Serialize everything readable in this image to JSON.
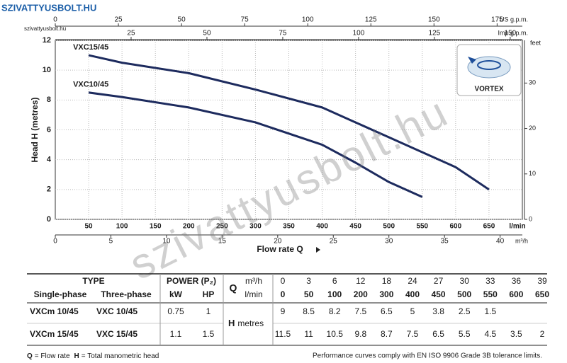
{
  "brand": {
    "name": "SZIVATTYUSBOLT.HU",
    "site": "szivattyusbolt.hu"
  },
  "watermark": "szivattyusbolt.hu",
  "badge": "VORTEX",
  "chart_data": {
    "type": "line",
    "ylabel": "Head H (metres)",
    "xlabel": "Flow rate Q",
    "x_unit": "l/min",
    "xlim": [
      0,
      700
    ],
    "xticks": [
      50,
      100,
      150,
      200,
      250,
      300,
      350,
      400,
      450,
      500,
      550,
      600,
      650
    ],
    "ylim": [
      0,
      12
    ],
    "yticks": [
      0,
      2,
      4,
      6,
      8,
      10,
      12
    ],
    "grid": true,
    "x": [
      50,
      100,
      200,
      300,
      400,
      450,
      500,
      550,
      600,
      650
    ],
    "series": [
      {
        "name": "VXC15/45",
        "color": "#1d2b5e",
        "values": [
          11,
          10.5,
          9.8,
          8.7,
          7.5,
          6.5,
          5.5,
          4.5,
          3.5,
          2
        ]
      },
      {
        "name": "VXC10/45",
        "color": "#1d2b5e",
        "values": [
          8.5,
          8.2,
          7.5,
          6.5,
          5,
          3.8,
          2.5,
          1.5,
          null,
          null
        ]
      }
    ],
    "secondary_axes": [
      {
        "position": "top",
        "unit": "US g.p.m.",
        "lim": [
          0,
          185
        ],
        "ticks": [
          0,
          25,
          50,
          75,
          100,
          125,
          150,
          175
        ]
      },
      {
        "position": "top2",
        "unit": "Imp g.p.m.",
        "lim": [
          0,
          154
        ],
        "ticks": [
          25,
          50,
          75,
          100,
          125,
          150
        ]
      },
      {
        "position": "bottom2",
        "unit": "m³/h",
        "lim": [
          0,
          42
        ],
        "ticks": [
          0,
          5,
          10,
          15,
          20,
          25,
          30,
          35,
          40
        ]
      },
      {
        "position": "right",
        "unit": "feet",
        "lim": [
          0,
          39.4
        ],
        "ticks": [
          0,
          10,
          20,
          30
        ]
      }
    ]
  },
  "table": {
    "type_header": "TYPE",
    "power_header": "POWER (P₂)",
    "q_symbol": "Q",
    "q_units": [
      "m³/h",
      "l/min"
    ],
    "flow_m3h": [
      0,
      3,
      6,
      12,
      18,
      24,
      27,
      30,
      33,
      36,
      39
    ],
    "flow_lmin": [
      0,
      50,
      100,
      200,
      300,
      400,
      450,
      500,
      550,
      600,
      650
    ],
    "columns": [
      "Single-phase",
      "Three-phase",
      "kW",
      "HP"
    ],
    "h_symbol": "H",
    "h_unit": "metres",
    "rows": [
      {
        "single_phase": "VXCm 10/45",
        "three_phase": "VXC 10/45",
        "kw": 0.75,
        "hp": 1,
        "heads": [
          9,
          8.5,
          8.2,
          7.5,
          6.5,
          5,
          3.8,
          2.5,
          1.5
        ]
      },
      {
        "single_phase": "VXCm 15/45",
        "three_phase": "VXC 15/45",
        "kw": 1.1,
        "hp": 1.5,
        "heads": [
          11.5,
          11,
          10.5,
          9.8,
          8.7,
          7.5,
          6.5,
          5.5,
          4.5,
          3.5,
          2
        ]
      }
    ]
  },
  "footer": {
    "legend": [
      {
        "symbol": "Q",
        "text": "= Flow rate"
      },
      {
        "symbol": "H",
        "text": "= Total manometric head"
      }
    ],
    "note": "Performance curves comply with EN ISO 9906 Grade 3B tolerance limits."
  }
}
